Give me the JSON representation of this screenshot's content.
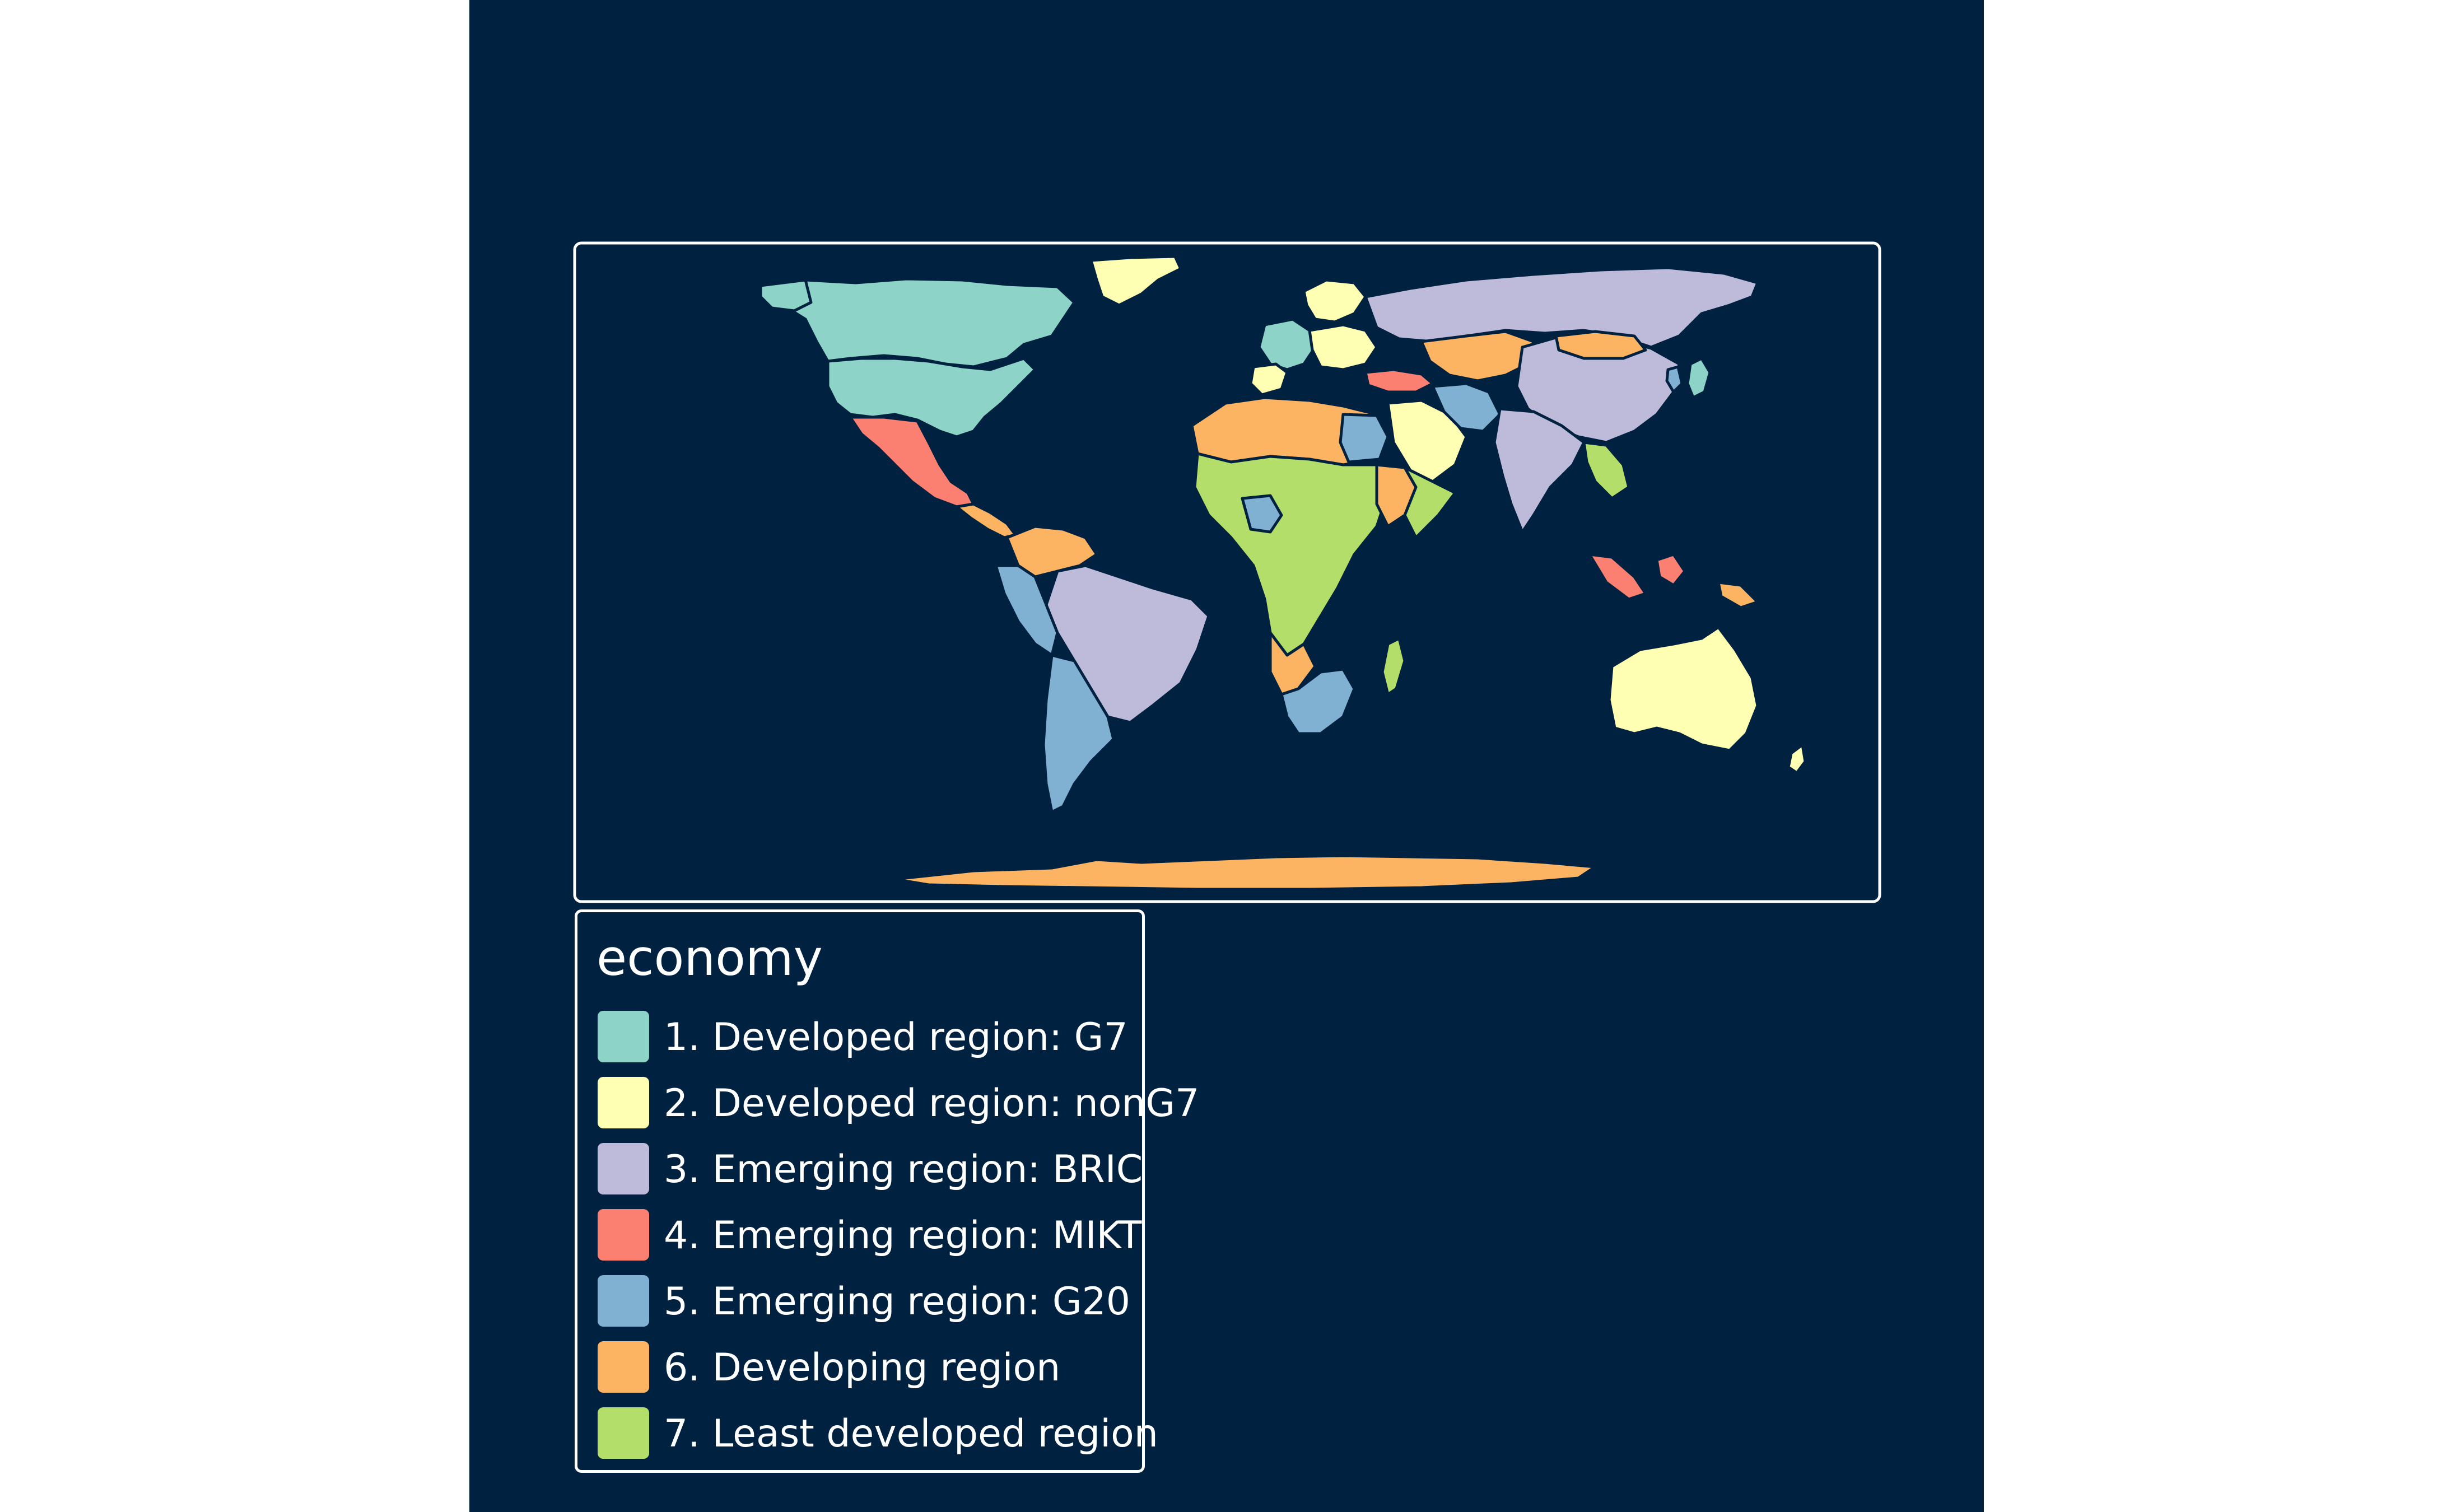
{
  "legend": {
    "title": "economy",
    "items": [
      {
        "label": "1. Developed region: G7",
        "color": "#8dd3c7"
      },
      {
        "label": "2. Developed region: nonG7",
        "color": "#ffffb3"
      },
      {
        "label": "3. Emerging region: BRIC",
        "color": "#bebada"
      },
      {
        "label": "4. Emerging region: MIKT",
        "color": "#fb8072"
      },
      {
        "label": "5. Emerging region: G20",
        "color": "#80b1d3"
      },
      {
        "label": "6. Developing region",
        "color": "#fdb462"
      },
      {
        "label": "7. Least developed region",
        "color": "#b3de69"
      }
    ]
  },
  "colors": {
    "background": "#00213f",
    "frame": "#ffffff",
    "border": "#00213f"
  }
}
